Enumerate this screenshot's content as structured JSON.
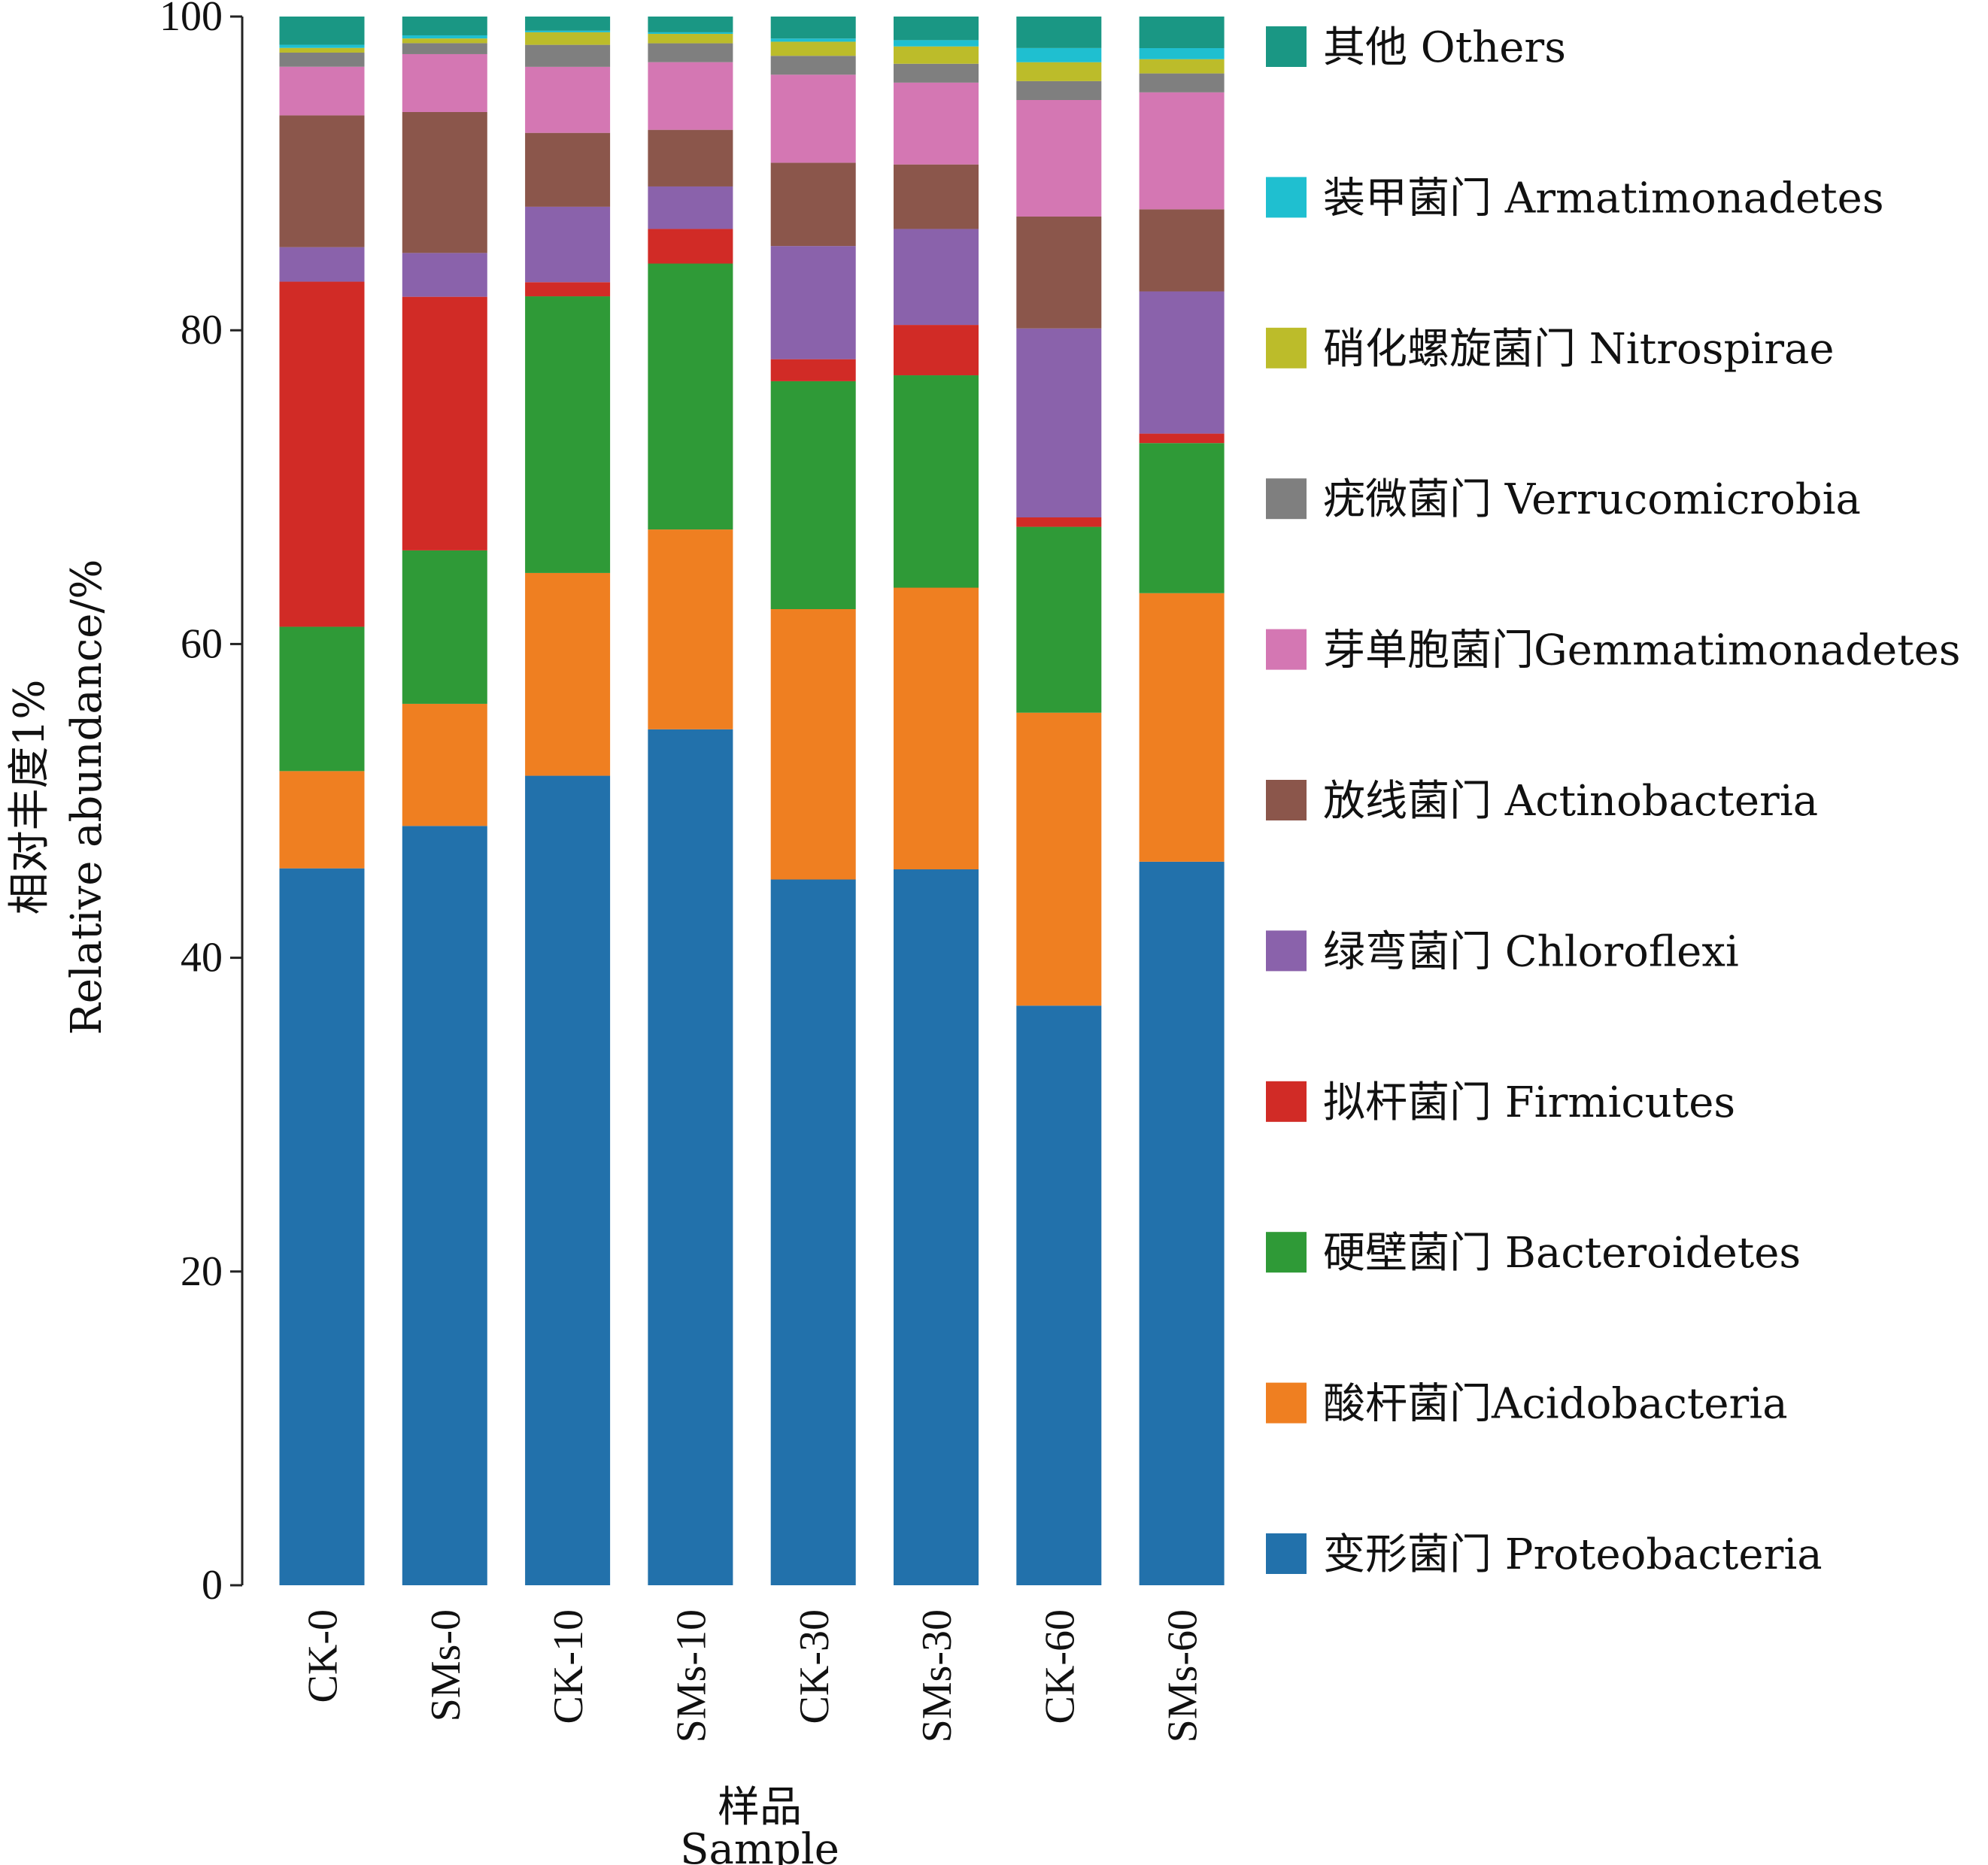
{
  "chart_data": {
    "type": "bar",
    "stacked": true,
    "xlabel": [
      "样品",
      "Sample"
    ],
    "ylabel": [
      "相对丰度1%",
      "Relative abundance/%"
    ],
    "ylim": [
      0,
      100
    ],
    "yticks": [
      0,
      20,
      40,
      60,
      80,
      100
    ],
    "legend_placement": "right",
    "categories": [
      "CK-0",
      "SMs-0",
      "CK-10",
      "SMs-10",
      "CK-30",
      "SMs-30",
      "CK-60",
      "SMs-60"
    ],
    "series": [
      {
        "name": "变形菌门 Proteobacteria",
        "color": "#2271ab",
        "values": [
          45.7,
          48.5,
          51.5,
          54.4,
          44.9,
          45.5,
          36.8,
          45.8
        ]
      },
      {
        "name": "酸杆菌门Acidobacteria",
        "color": "#ef7f21",
        "values": [
          6.2,
          7.8,
          12.9,
          12.7,
          17.2,
          17.9,
          18.6,
          17.0
        ]
      },
      {
        "name": "硬壁菌门 Bacteroidetes",
        "color": "#2f9a37",
        "values": [
          9.2,
          9.8,
          17.6,
          16.9,
          14.5,
          13.5,
          11.8,
          9.5
        ]
      },
      {
        "name": "拟杆菌门 Firmicutes",
        "color": "#d12b26",
        "values": [
          22.0,
          16.2,
          0.9,
          2.2,
          1.4,
          3.2,
          0.6,
          0.6
        ]
      },
      {
        "name": "绿弯菌门 Chloroflexi",
        "color": "#8a62ab",
        "values": [
          2.2,
          2.8,
          4.8,
          2.7,
          7.2,
          6.1,
          12.0,
          9.0
        ]
      },
      {
        "name": "放线菌门 Actinobacteria",
        "color": "#8b564b",
        "values": [
          8.4,
          9.0,
          4.7,
          3.6,
          5.3,
          4.1,
          7.1,
          5.2
        ]
      },
      {
        "name": "芽单胞菌门Gemmatimonadetes",
        "color": "#d477b3",
        "values": [
          3.1,
          3.7,
          4.2,
          4.3,
          5.6,
          5.2,
          7.4,
          7.4
        ]
      },
      {
        "name": "疣微菌门 Verrucomicrobia",
        "color": "#7f7f7f",
        "values": [
          0.9,
          0.7,
          1.4,
          1.2,
          1.2,
          1.2,
          1.2,
          1.2
        ]
      },
      {
        "name": "硝化螺旋菌门 Nitrospirae",
        "color": "#bcbc2a",
        "values": [
          0.3,
          0.3,
          0.8,
          0.6,
          0.9,
          1.1,
          1.2,
          0.9
        ]
      },
      {
        "name": "装甲菌门 Armatimonadetes",
        "color": "#1fbfd0",
        "values": [
          0.2,
          0.2,
          0.1,
          0.1,
          0.2,
          0.4,
          0.9,
          0.7
        ]
      },
      {
        "name": "其他 Others",
        "color": "#1a9784",
        "values": [
          1.8,
          1.2,
          0.9,
          1.0,
          1.4,
          1.5,
          2.0,
          2.0
        ]
      }
    ]
  }
}
